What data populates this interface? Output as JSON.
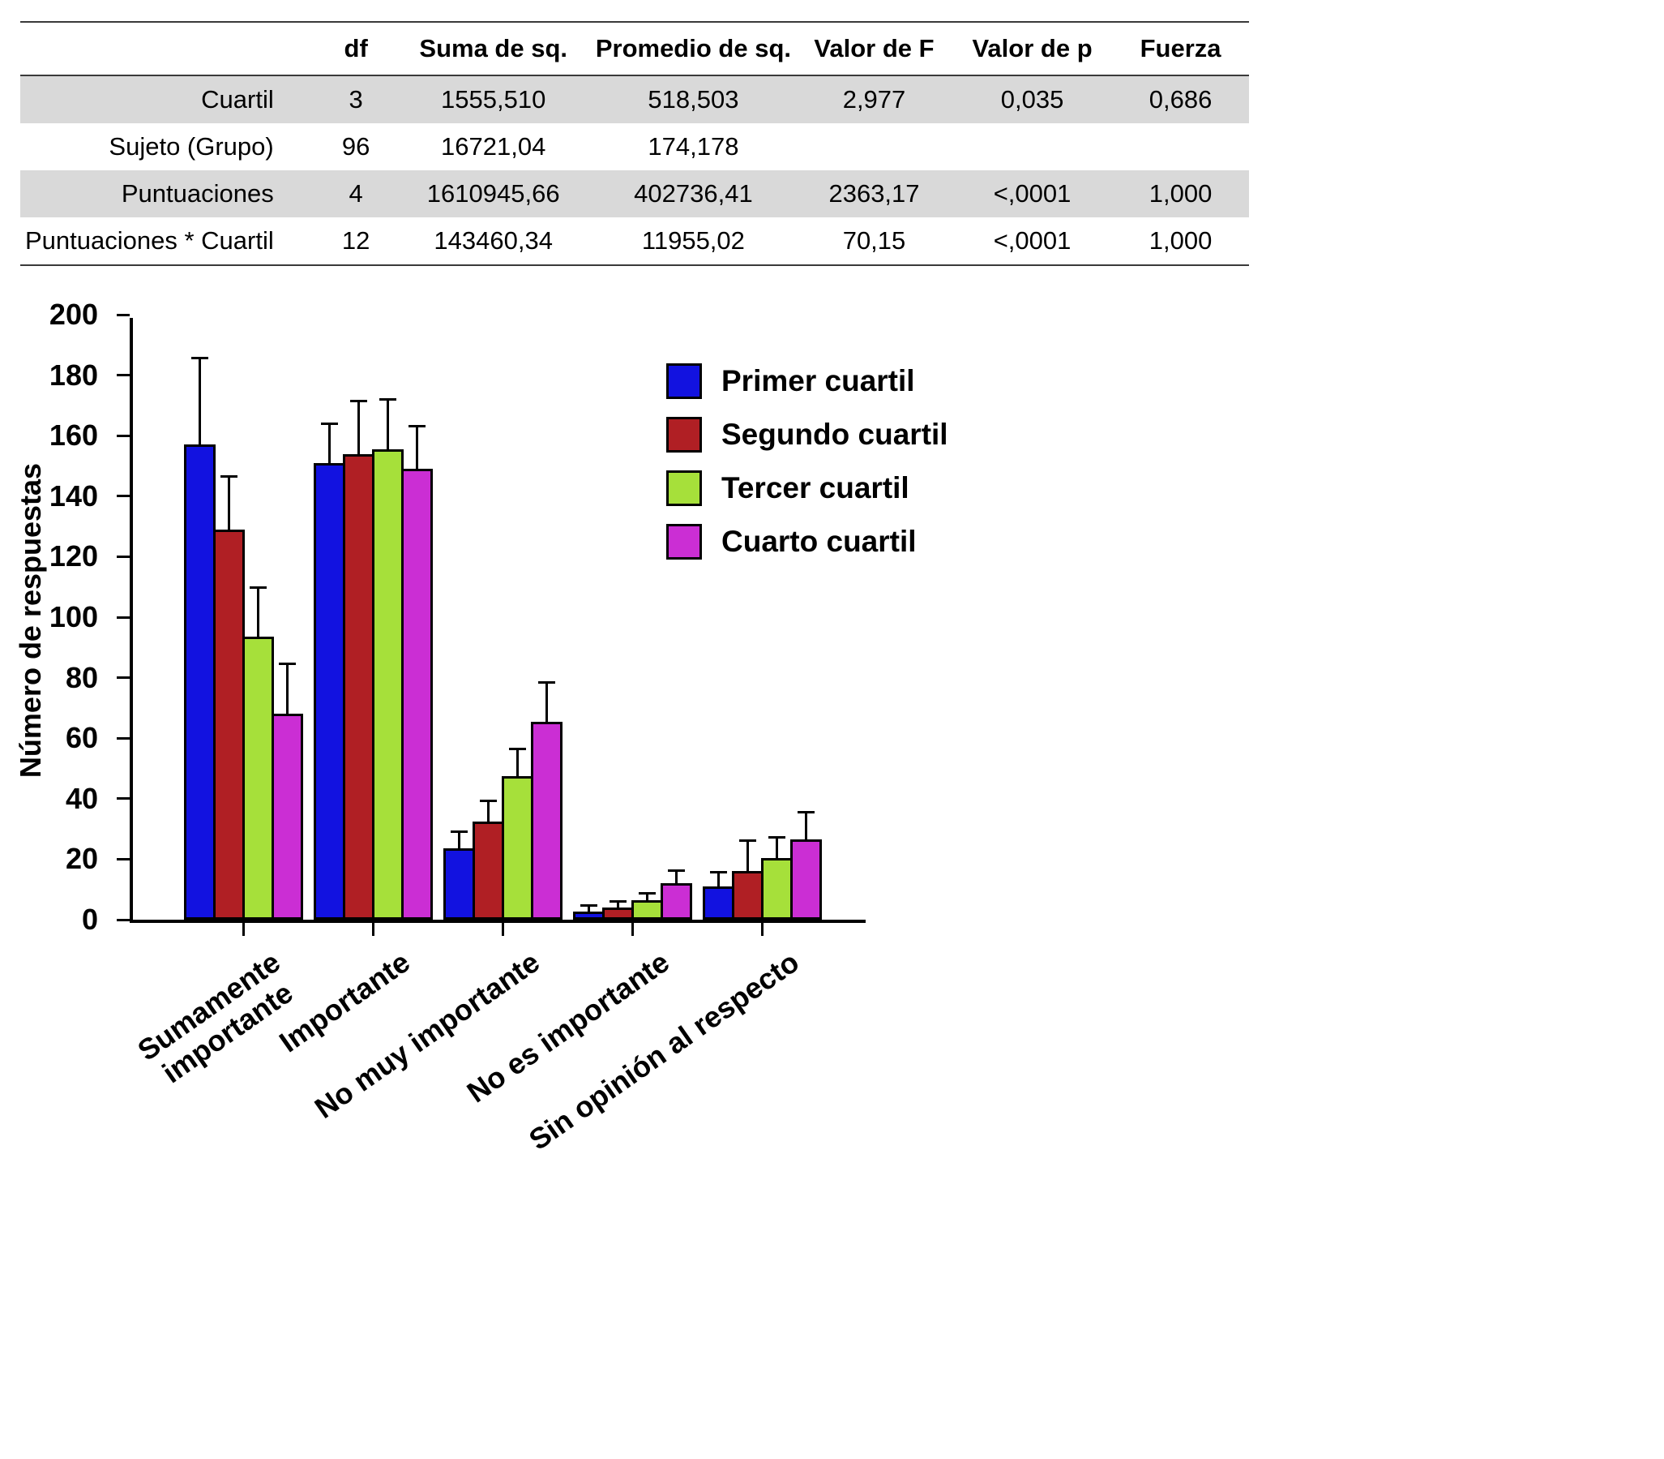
{
  "table": {
    "headers": [
      "",
      "df",
      "Suma de sq.",
      "Promedio de sq.",
      "Valor de F",
      "Valor de p",
      "Fuerza"
    ],
    "rows": [
      {
        "label": "Cuartil",
        "cells": [
          "3",
          "1555,510",
          "518,503",
          "2,977",
          "0,035",
          "0,686"
        ],
        "shaded": true
      },
      {
        "label": "Sujeto (Grupo)",
        "cells": [
          "96",
          "16721,04",
          "174,178",
          "",
          "",
          ""
        ],
        "shaded": false
      },
      {
        "label": "Puntuaciones",
        "cells": [
          "4",
          "1610945,66",
          "402736,41",
          "2363,17",
          "<,0001",
          "1,000"
        ],
        "shaded": true
      },
      {
        "label": "Puntuaciones * Cuartil",
        "cells": [
          "12",
          "143460,34",
          "11955,02",
          "70,15",
          "<,0001",
          "1,000"
        ],
        "shaded": false
      }
    ]
  },
  "chart_data": {
    "type": "bar",
    "title": "",
    "xlabel": "",
    "ylabel": "Número de respuestas",
    "ylim": [
      0,
      200
    ],
    "ytick_step": 20,
    "grid": false,
    "legend_position": "upper-right-inside",
    "error_bars": "upper",
    "categories": [
      "Sumamente\nimportante",
      "Importante",
      "No muy importante",
      "No es importante",
      "Sin opinión al respecto"
    ],
    "series": [
      {
        "name": "Primer cuartil",
        "color": "#1212e0",
        "values": [
          157,
          151,
          23.5,
          2.7,
          11
        ],
        "errors": [
          29,
          13.5,
          6,
          2.4,
          5.1
        ]
      },
      {
        "name": "Segundo cuartil",
        "color": "#b01f24",
        "values": [
          129,
          154,
          32.5,
          4,
          16
        ],
        "errors": [
          18,
          18,
          7.2,
          2.4,
          10.5
        ]
      },
      {
        "name": "Tercer cuartil",
        "color": "#a6e03a",
        "values": [
          93.5,
          155.5,
          47.5,
          6.5,
          20.5
        ],
        "errors": [
          16.5,
          17,
          9.4,
          2.7,
          7.3
        ]
      },
      {
        "name": "Cuarto cuartil",
        "color": "#cb2ed4",
        "values": [
          68,
          149,
          65.5,
          12,
          26.5
        ],
        "errors": [
          17,
          14.5,
          13.4,
          4.6,
          9.4
        ]
      }
    ]
  }
}
